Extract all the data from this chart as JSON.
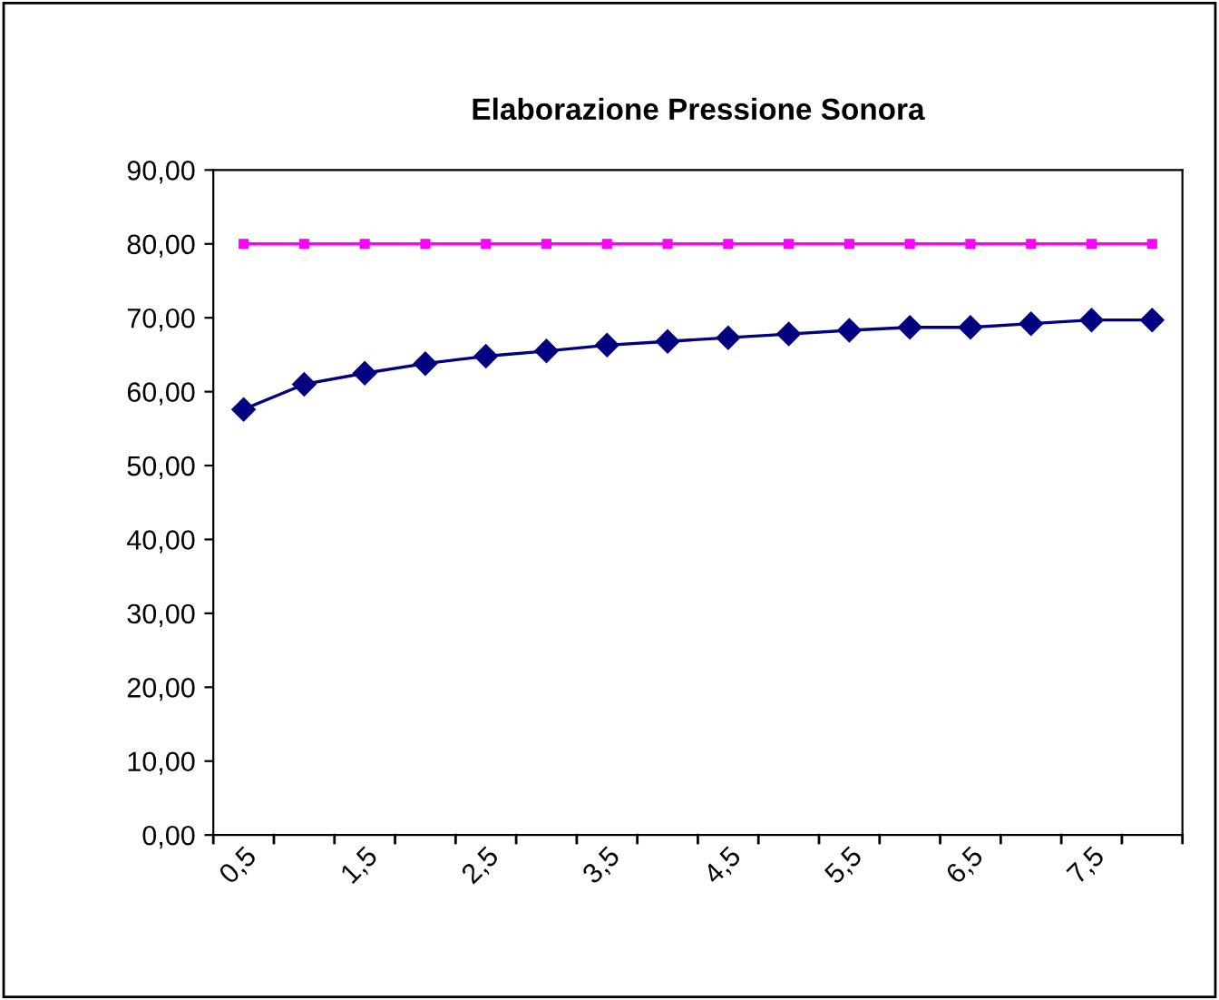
{
  "chart_data": {
    "type": "line",
    "title": "Elaborazione Pressione Sonora",
    "categories": [
      "0,5",
      null,
      "1,5",
      null,
      "2,5",
      null,
      "3,5",
      null,
      "4,5",
      null,
      "5,5",
      null,
      "6,5",
      null,
      "7,5",
      null
    ],
    "series": [
      {
        "color": "#000080",
        "marker": "diamond",
        "line_style": "solid",
        "values": [
          57.6,
          61.0,
          62.5,
          63.8,
          64.8,
          65.5,
          66.3,
          66.8,
          67.3,
          67.8,
          68.3,
          68.7,
          68.7,
          69.2,
          69.7,
          69.7
        ]
      },
      {
        "color": "#ff00ff",
        "marker": "square",
        "line_style": "solid",
        "values": [
          80,
          80,
          80,
          80,
          80,
          80,
          80,
          80,
          80,
          80,
          80,
          80,
          80,
          80,
          80,
          80
        ]
      }
    ],
    "ylim": [
      0,
      90
    ],
    "yticks": [
      {
        "value": 0,
        "label": "0,00"
      },
      {
        "value": 10,
        "label": "10,00"
      },
      {
        "value": 20,
        "label": "20,00"
      },
      {
        "value": 30,
        "label": "30,00"
      },
      {
        "value": 40,
        "label": "40,00"
      },
      {
        "value": 50,
        "label": "50,00"
      },
      {
        "value": 60,
        "label": "60,00"
      },
      {
        "value": 70,
        "label": "70,00"
      },
      {
        "value": 80,
        "label": "80,00"
      },
      {
        "value": 90,
        "label": "90,00"
      }
    ],
    "grid": false,
    "legend": false
  }
}
